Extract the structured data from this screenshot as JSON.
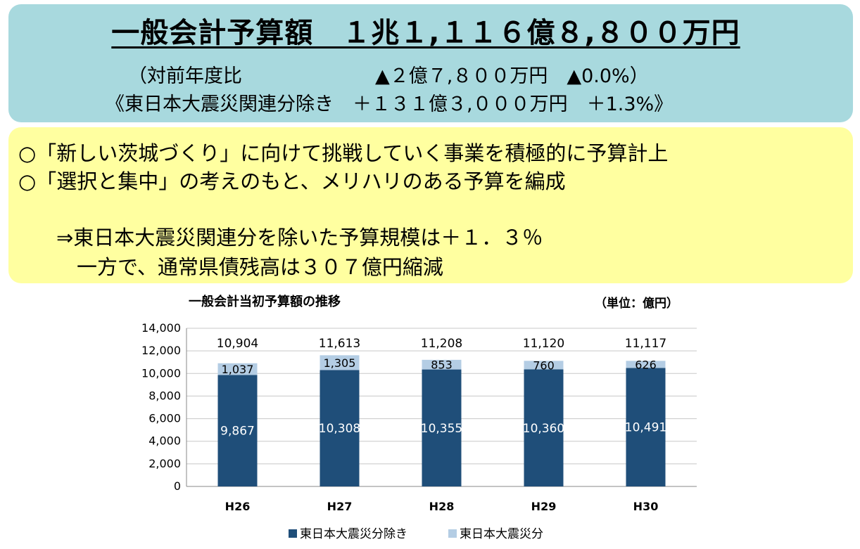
{
  "headline": "一般会計予算額　１兆１,１１６億８,８００万円",
  "comparison_line": "（対前年度比　　　　　　　▲２億７,８００万円　▲0.0%）",
  "excl_disaster_line": "《東日本大震災関連分除き　＋１３１億３,０００万円　＋1.3%》",
  "bullets": [
    "○「新しい茨城づくり」に向けて挑戦していく事業を積極的に予算計上",
    "○「選択と集中」の考えのもと、メリハリのある予算を編成"
  ],
  "conclusion_lines": [
    "⇒東日本大震災関連分を除いた予算規模は＋１．３％",
    "　一方で、通常県債残高は３０７億円縮減"
  ],
  "colors": {
    "top_panel": "#a8d9de",
    "mid_panel": "#ffffa0",
    "series_main": "#1f4e79",
    "series_disaster": "#b4cde4"
  },
  "chart_data": {
    "type": "bar",
    "stacked": true,
    "title": "一般会計当初予算額の推移",
    "unit": "（単位：億円）",
    "categories": [
      "H26",
      "H27",
      "H28",
      "H29",
      "H30"
    ],
    "series": [
      {
        "name": "東日本大震災分除き",
        "values": [
          9867,
          10308,
          10355,
          10360,
          10491
        ],
        "labels": [
          "9,867",
          "10,308",
          "10,355",
          "10,360",
          "10,491"
        ]
      },
      {
        "name": "東日本大震災分",
        "values": [
          1037,
          1305,
          853,
          760,
          626
        ],
        "labels": [
          "1,037",
          "1,305",
          "853",
          "760",
          "626"
        ]
      }
    ],
    "totals": [
      "10,904",
      "11,613",
      "11,208",
      "11,120",
      "11,117"
    ],
    "ylim": [
      0,
      14000
    ],
    "yticks": [
      "0",
      "2,000",
      "4,000",
      "6,000",
      "8,000",
      "10,000",
      "12,000",
      "14,000"
    ],
    "grid": true,
    "legend_position": "bottom"
  }
}
